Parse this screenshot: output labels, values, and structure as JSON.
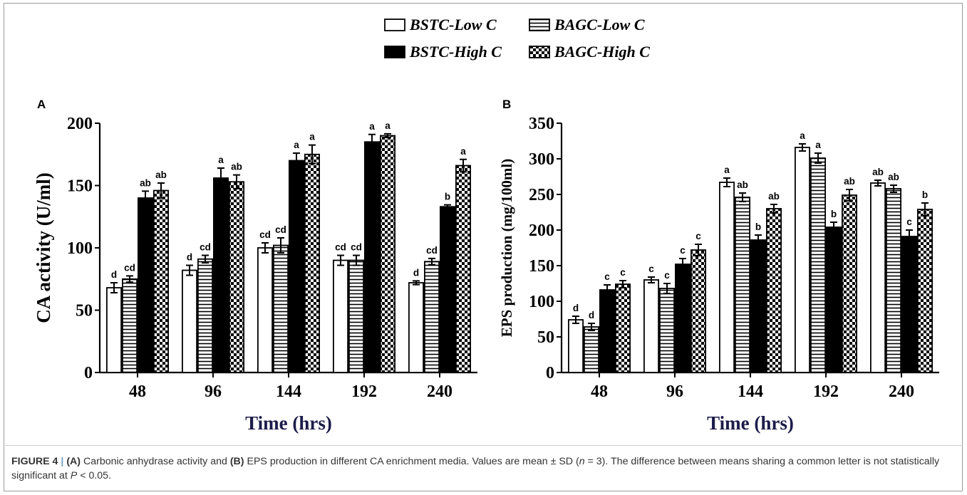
{
  "legend": {
    "items": [
      {
        "label": "BSTC-Low C",
        "pattern": "empty"
      },
      {
        "label": "BAGC-Low C",
        "pattern": "hlines"
      },
      {
        "label": "BSTC-High C",
        "pattern": "solid"
      },
      {
        "label": "BAGC-High C",
        "pattern": "checker"
      }
    ]
  },
  "colors": {
    "bar_stroke": "#000000",
    "axis_title": "#1c1c4a",
    "caption_sep": "#7a9fc4"
  },
  "caption": {
    "fig_label": "FIGURE 4",
    "sep": "|",
    "a_label": "(A)",
    "text1": "Carbonic anhydrase activity and",
    "b_label": "(B)",
    "text2": "EPS production in different CA enrichment media. Values are mean ± SD (",
    "n_var": "n",
    "n_eq": " = 3). The difference between means sharing a common letter is not statistically significant at ",
    "p_var": "P",
    "p_tail": " < 0.05."
  },
  "chart_data": [
    {
      "panel": "A",
      "type": "bar",
      "xlabel": "Time (hrs)",
      "ylabel": "CA activity (U/ml)",
      "categories": [
        "48",
        "96",
        "144",
        "192",
        "240"
      ],
      "ylim": [
        0,
        200
      ],
      "yticks": [
        0,
        50,
        100,
        150,
        200
      ],
      "series": [
        {
          "name": "BSTC-Low C",
          "values": [
            68,
            82,
            100,
            90,
            72
          ],
          "errors": [
            4,
            4,
            4,
            4,
            1.5
          ],
          "letters": [
            "d",
            "d",
            "cd",
            "cd",
            "d"
          ]
        },
        {
          "name": "BAGC-Low C",
          "values": [
            75,
            91,
            102,
            90,
            89
          ],
          "errors": [
            2.5,
            3,
            6,
            4,
            2.5
          ],
          "letters": [
            "cd",
            "cd",
            "cd",
            "cd",
            "cd"
          ]
        },
        {
          "name": "BSTC-High C",
          "values": [
            140,
            156,
            170,
            185,
            133
          ],
          "errors": [
            5.5,
            8,
            6,
            6,
            1.5
          ],
          "letters": [
            "ab",
            "a",
            "a",
            "a",
            "b"
          ]
        },
        {
          "name": "BAGC-High C",
          "values": [
            146,
            153,
            175,
            190,
            166
          ],
          "errors": [
            6,
            5.5,
            7.5,
            1.5,
            5
          ],
          "letters": [
            "ab",
            "ab",
            "a",
            "a",
            "a"
          ]
        }
      ]
    },
    {
      "panel": "B",
      "type": "bar",
      "xlabel": "Time (hrs)",
      "ylabel": "EPS production (mg/100ml)",
      "categories": [
        "48",
        "96",
        "144",
        "192",
        "240"
      ],
      "ylim": [
        0,
        350
      ],
      "yticks": [
        0,
        50,
        100,
        150,
        200,
        250,
        300,
        350
      ],
      "series": [
        {
          "name": "BSTC-Low C",
          "values": [
            74,
            130,
            267,
            316,
            266
          ],
          "errors": [
            5,
            4,
            6,
            5,
            4
          ],
          "letters": [
            "d",
            "c",
            "a",
            "a",
            "ab"
          ]
        },
        {
          "name": "BAGC-Low C",
          "values": [
            64,
            118,
            246,
            301,
            258
          ],
          "errors": [
            5,
            7,
            6,
            7,
            5
          ],
          "letters": [
            "d",
            "c",
            "ab",
            "a",
            "ab"
          ]
        },
        {
          "name": "BSTC-High C",
          "values": [
            116,
            152,
            186,
            204,
            191
          ],
          "errors": [
            7,
            8,
            7,
            7,
            9
          ],
          "letters": [
            "c",
            "c",
            "b",
            "b",
            "c"
          ]
        },
        {
          "name": "BAGC-High C",
          "values": [
            124,
            172,
            230,
            249,
            229
          ],
          "errors": [
            5,
            8,
            6,
            8,
            9
          ],
          "letters": [
            "c",
            "c",
            "ab",
            "ab",
            "b"
          ]
        }
      ]
    }
  ]
}
